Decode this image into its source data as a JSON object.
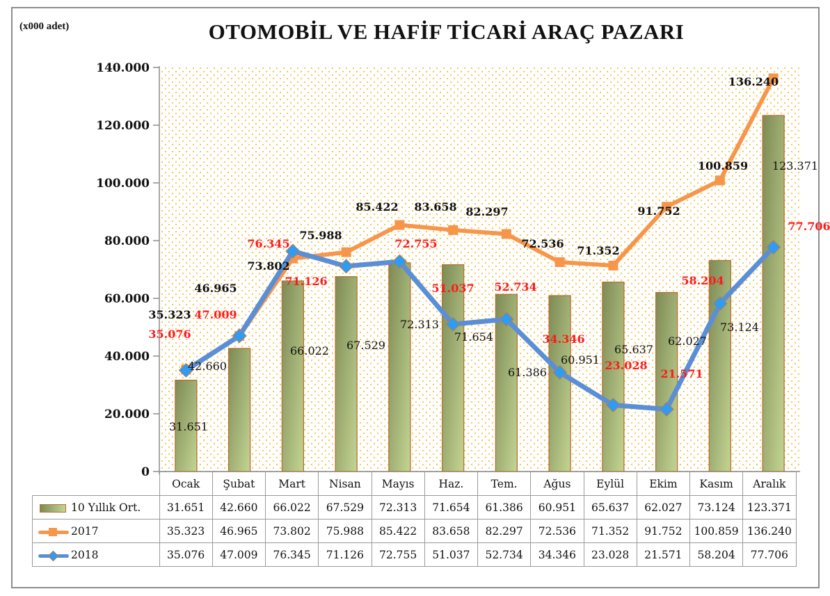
{
  "header": {
    "unit_label": "(x000 adet)",
    "title": "OTOMOBİL VE HAFİF TİCARİ ARAÇ PAZARI"
  },
  "colors": {
    "bar_fill_top": "#7d8a55",
    "bar_fill_bottom": "#c3d593",
    "bar_border": "#b8702e",
    "series_2017": "#f7964a",
    "series_2018_line": "#5a8fd6",
    "series_2018_marker": "#2e9bf5",
    "label_2018": "#ff1a1a",
    "plot_dots": "#f5c242"
  },
  "axis": {
    "y_ticks": [
      "0",
      "20.000",
      "40.000",
      "60.000",
      "80.000",
      "100.000",
      "120.000",
      "140.000"
    ]
  },
  "table": {
    "months": [
      "Ocak",
      "Şubat",
      "Mart",
      "Nisan",
      "Mayıs",
      "Haz.",
      "Tem.",
      "Ağus",
      "Eylül",
      "Ekim",
      "Kasım",
      "Aralık"
    ],
    "rows": [
      {
        "legend": "10 Yıllık Ort.",
        "values": [
          "31.651",
          "42.660",
          "66.022",
          "67.529",
          "72.313",
          "71.654",
          "61.386",
          "60.951",
          "65.637",
          "62.027",
          "73.124",
          "123.371"
        ]
      },
      {
        "legend": "2017",
        "values": [
          "35.323",
          "46.965",
          "73.802",
          "75.988",
          "85.422",
          "83.658",
          "82.297",
          "72.536",
          "71.352",
          "91.752",
          "100.859",
          "136.240"
        ]
      },
      {
        "legend": "2018",
        "values": [
          "35.076",
          "47.009",
          "76.345",
          "71.126",
          "72.755",
          "51.037",
          "52.734",
          "34.346",
          "23.028",
          "21.571",
          "58.204",
          "77.706"
        ]
      }
    ]
  },
  "chart_data": {
    "type": "bar+line",
    "title": "OTOMOBİL VE HAFİF TİCARİ ARAÇ PAZARI",
    "ylabel": "(x000 adet)",
    "xlabel": "",
    "ylim": [
      0,
      140000
    ],
    "y_ticks": [
      0,
      20000,
      40000,
      60000,
      80000,
      100000,
      120000,
      140000
    ],
    "grid": false,
    "legend_position": "data-table",
    "categories": [
      "Ocak",
      "Şubat",
      "Mart",
      "Nisan",
      "Mayıs",
      "Haz.",
      "Tem.",
      "Ağus",
      "Eylül",
      "Ekim",
      "Kasım",
      "Aralık"
    ],
    "series": [
      {
        "name": "10 Yıllık Ort.",
        "type": "bar",
        "values": [
          31651,
          42660,
          66022,
          67529,
          72313,
          71654,
          61386,
          60951,
          65637,
          62027,
          73124,
          123371
        ]
      },
      {
        "name": "2017",
        "type": "line",
        "marker": "square",
        "values": [
          35323,
          46965,
          73802,
          75988,
          85422,
          83658,
          82297,
          72536,
          71352,
          91752,
          100859,
          136240
        ]
      },
      {
        "name": "2018",
        "type": "line",
        "marker": "diamond",
        "values": [
          35076,
          47009,
          76345,
          71126,
          72755,
          51037,
          52734,
          34346,
          23028,
          21571,
          58204,
          77706
        ]
      }
    ]
  }
}
